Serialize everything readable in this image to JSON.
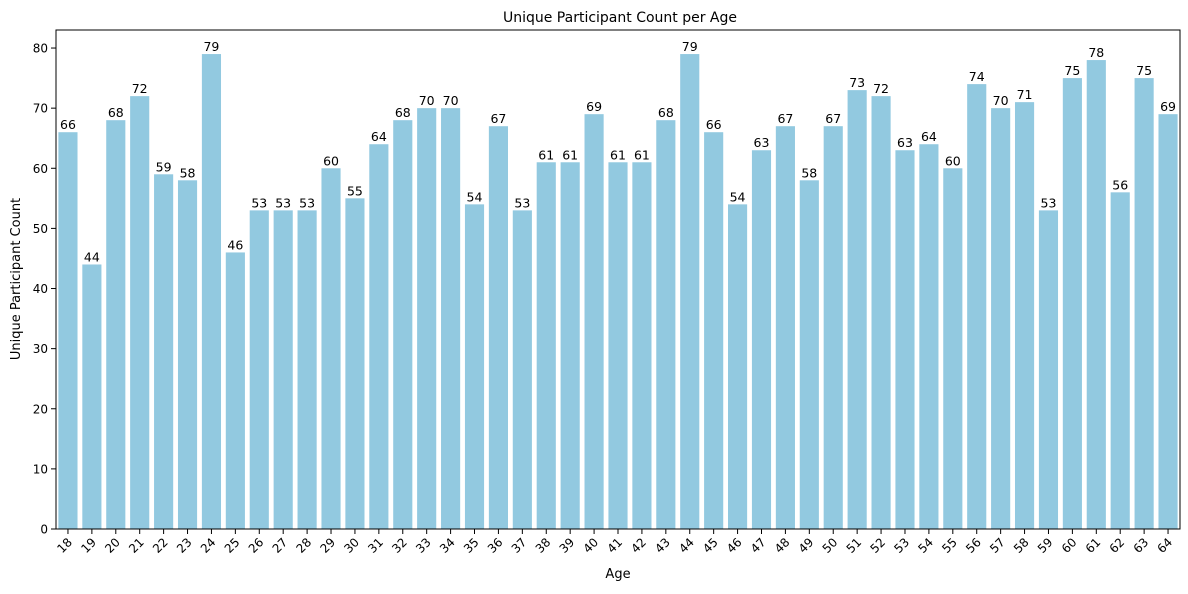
{
  "chart_data": {
    "type": "bar",
    "title": "Unique Participant Count per Age",
    "xlabel": "Age",
    "ylabel": "Unique Participant Count",
    "ylim": [
      0,
      83
    ],
    "yticks": [
      0,
      10,
      20,
      30,
      40,
      50,
      60,
      70,
      80
    ],
    "grid": false,
    "bar_color": "#92c9e0",
    "categories": [
      "18",
      "19",
      "20",
      "21",
      "22",
      "23",
      "24",
      "25",
      "26",
      "27",
      "28",
      "29",
      "30",
      "31",
      "32",
      "33",
      "34",
      "35",
      "36",
      "37",
      "38",
      "39",
      "40",
      "41",
      "42",
      "43",
      "44",
      "45",
      "46",
      "47",
      "48",
      "49",
      "50",
      "51",
      "52",
      "53",
      "54",
      "55",
      "56",
      "57",
      "58",
      "59",
      "60",
      "61",
      "62",
      "63",
      "64"
    ],
    "values": [
      66,
      44,
      68,
      72,
      59,
      58,
      79,
      46,
      53,
      53,
      53,
      60,
      55,
      64,
      68,
      70,
      70,
      54,
      67,
      53,
      61,
      61,
      69,
      61,
      61,
      68,
      79,
      66,
      54,
      63,
      67,
      58,
      67,
      73,
      72,
      63,
      64,
      60,
      74,
      70,
      71,
      53,
      75,
      78,
      56,
      75,
      69
    ],
    "data_labels": true
  }
}
